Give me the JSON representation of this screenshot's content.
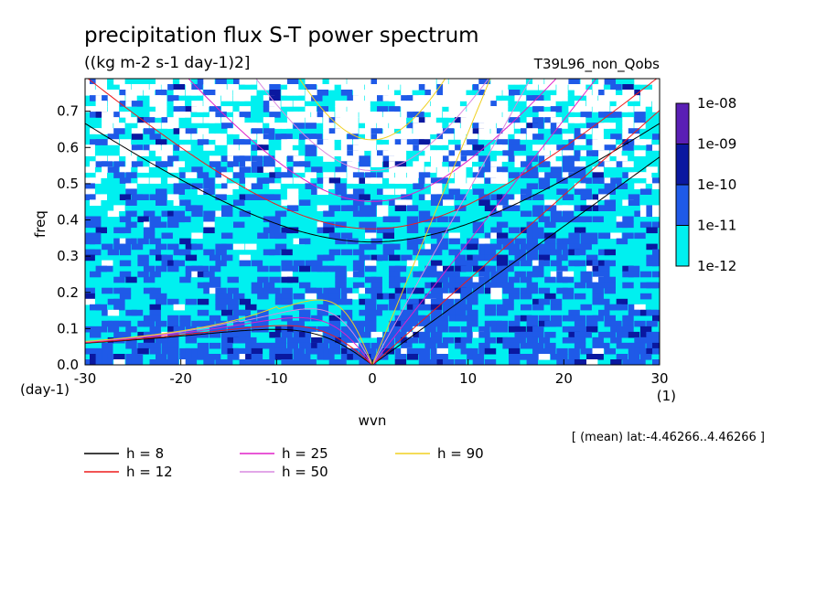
{
  "chart_data": {
    "type": "contour",
    "title": "precipitation flux S-T power spectrum",
    "units": "((kg m-2 s-1 day-1)2]",
    "experiment": "T39L96_non_Qobs",
    "xlabel": "wvn",
    "ylabel": "freq",
    "x_unit": "(1)",
    "y_unit": "(day-1)",
    "xlim": [
      -30,
      30
    ],
    "ylim": [
      0,
      0.79
    ],
    "xticks": [
      "-30",
      "-20",
      "-10",
      "0",
      "10",
      "20",
      "30"
    ],
    "xtick_values": [
      -30,
      -20,
      -10,
      0,
      10,
      20,
      30
    ],
    "yticks": [
      "0.0",
      "0.1",
      "0.2",
      "0.3",
      "0.4",
      "0.5",
      "0.6",
      "0.7"
    ],
    "ytick_values": [
      0,
      0.1,
      0.2,
      0.3,
      0.4,
      0.5,
      0.6,
      0.7
    ],
    "region_note": "[ (mean) lat:-4.46266..4.46266 ]",
    "colorbar": {
      "labels": [
        "1e-08",
        "1e-09",
        "1e-10",
        "1e-11",
        "1e-12"
      ],
      "colors": [
        "#5a1fb5",
        "#0a18a0",
        "#1f5ae8",
        "#00f0f0"
      ]
    },
    "field_colors": {
      "low": "#ffffff",
      "mid": "#00f0f0",
      "high": "#1f5ae8",
      "peak": "#0a18a0"
    },
    "series": [
      {
        "name": "h =  8",
        "h": 8,
        "color": "#000000"
      },
      {
        "name": "h = 12",
        "h": 12,
        "color": "#ee1c1c"
      },
      {
        "name": "h = 25",
        "h": 25,
        "color": "#e020c8"
      },
      {
        "name": "h = 50",
        "h": 50,
        "color": "#d98ae0"
      },
      {
        "name": "h = 90",
        "h": 90,
        "color": "#f0d020"
      }
    ]
  }
}
